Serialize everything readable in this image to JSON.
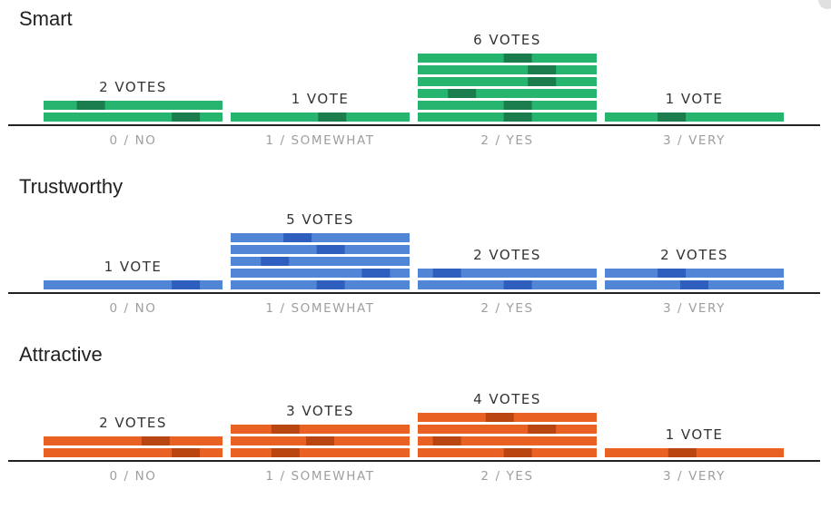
{
  "colors": {
    "axis": "#212121",
    "tick_label": "#9e9e9e",
    "vote_label": "#333333"
  },
  "chart_data": [
    {
      "type": "bar",
      "title": "Smart",
      "categories": [
        "0 / NO",
        "1 / SOMEWHAT",
        "2 / YES",
        "3 / VERY"
      ],
      "values": [
        2,
        1,
        6,
        1
      ],
      "vote_labels": [
        "2 VOTES",
        "1 VOTE",
        "6 VOTES",
        "1 VOTE"
      ],
      "color": "#27b46e",
      "accent": "#1b7d4d",
      "vote_marker": [
        [
          0.85,
          0.22
        ],
        [
          0.58
        ],
        [
          0.57,
          0.57,
          0.2,
          0.73,
          0.73,
          0.57
        ],
        [
          0.35
        ]
      ]
    },
    {
      "type": "bar",
      "title": "Trustworthy",
      "categories": [
        "0 / NO",
        "1 / SOMEWHAT",
        "2 / YES",
        "3 / VERY"
      ],
      "values": [
        1,
        5,
        2,
        2
      ],
      "vote_labels": [
        "1 VOTE",
        "5 VOTES",
        "2 VOTES",
        "2 VOTES"
      ],
      "color": "#5185d5",
      "accent": "#2e5fbf",
      "vote_marker": [
        [
          0.85
        ],
        [
          0.57,
          0.87,
          0.2,
          0.57,
          0.35
        ],
        [
          0.57,
          0.1
        ],
        [
          0.5,
          0.35
        ]
      ]
    },
    {
      "type": "bar",
      "title": "Attractive",
      "categories": [
        "0 / NO",
        "1 / SOMEWHAT",
        "2 / YES",
        "3 / VERY"
      ],
      "values": [
        2,
        3,
        4,
        1
      ],
      "vote_labels": [
        "2 VOTES",
        "3 VOTES",
        "4 VOTES",
        "1 VOTE"
      ],
      "color": "#ea6223",
      "accent": "#b94610",
      "vote_marker": [
        [
          0.85,
          0.65
        ],
        [
          0.27,
          0.5,
          0.27
        ],
        [
          0.57,
          0.1,
          0.73,
          0.45
        ],
        [
          0.42
        ]
      ]
    }
  ]
}
